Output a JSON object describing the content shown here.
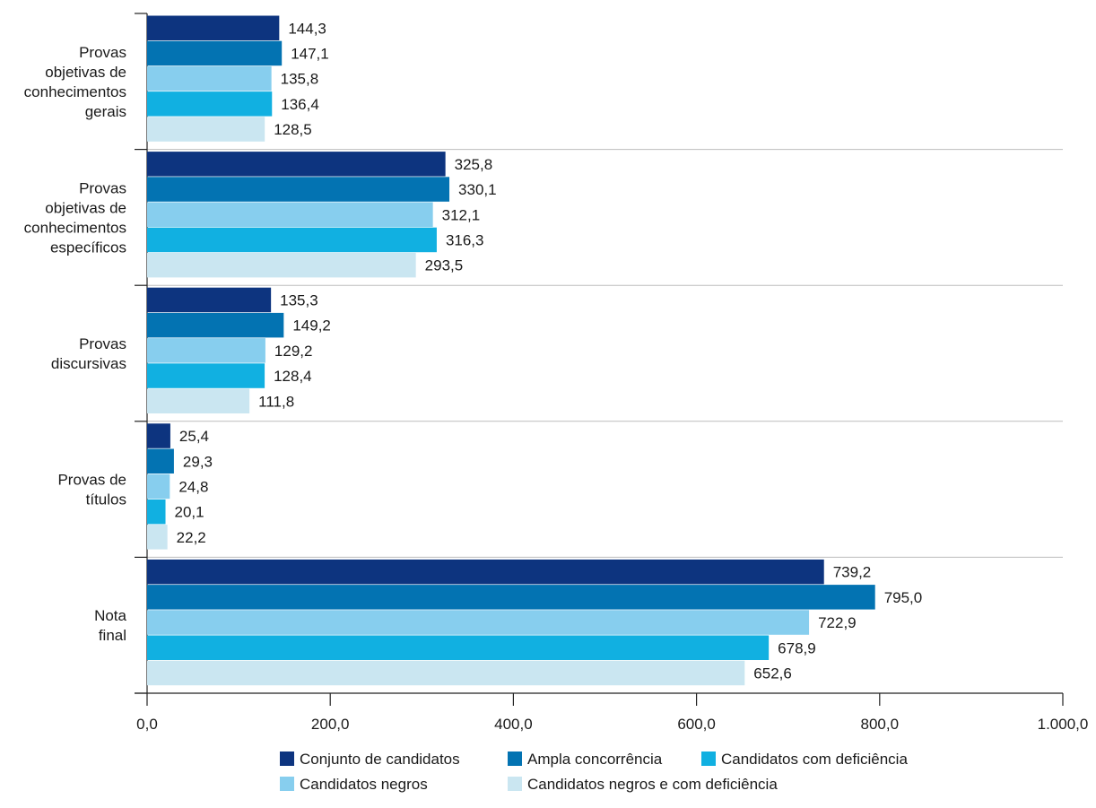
{
  "chart_data": {
    "type": "bar",
    "orientation": "horizontal",
    "categories": [
      "Provas objetivas de conhecimentos gerais",
      "Provas objetivas de conhecimentos específicos",
      "Provas discursivas",
      "Provas de títulos",
      "Nota final"
    ],
    "category_lines": [
      [
        "Provas",
        "objetivas de",
        "conhecimentos",
        "gerais"
      ],
      [
        "Provas",
        "objetivas de",
        "conhecimentos",
        "específicos"
      ],
      [
        "Provas",
        "discursivas"
      ],
      [
        "Provas de",
        "títulos"
      ],
      [
        "Nota",
        "final"
      ]
    ],
    "series": [
      {
        "name": "Conjunto de candidatos",
        "color": "#0d347f",
        "values": [
          144.3,
          325.8,
          135.3,
          25.4,
          739.2
        ],
        "labels": [
          "144,3",
          "325,8",
          "135,3",
          "25,4",
          "739,2"
        ]
      },
      {
        "name": "Ampla concorrência",
        "color": "#0373b2",
        "values": [
          147.1,
          330.1,
          149.2,
          29.3,
          795.0
        ],
        "labels": [
          "147,1",
          "330,1",
          "149,2",
          "29,3",
          "795,0"
        ]
      },
      {
        "name": "Candidatos negros",
        "color": "#87ceee",
        "values": [
          135.8,
          312.1,
          129.2,
          24.8,
          722.9
        ],
        "labels": [
          "135,8",
          "312,1",
          "129,2",
          "24,8",
          "722,9"
        ]
      },
      {
        "name": "Candidatos com deficiência",
        "color": "#11b0e1",
        "values": [
          136.4,
          316.3,
          128.4,
          20.1,
          678.9
        ],
        "labels": [
          "136,4",
          "316,3",
          "128,4",
          "20,1",
          "678,9"
        ]
      },
      {
        "name": "Candidatos negros e com deficiência",
        "color": "#cae6f1",
        "values": [
          128.5,
          293.5,
          111.8,
          22.2,
          652.6
        ],
        "labels": [
          "128,5",
          "293,5",
          "111,8",
          "22,2",
          "652,6"
        ]
      }
    ],
    "xlim": [
      0,
      1000
    ],
    "xticks": [
      0,
      200,
      400,
      600,
      800,
      1000
    ],
    "xtick_labels": [
      "0,0",
      "200,0",
      "400,0",
      "600,0",
      "800,0",
      "1.000,0"
    ],
    "grid": "horizontal separators between categories",
    "legend_position": "bottom",
    "legend_order": [
      0,
      1,
      3,
      2,
      4
    ],
    "title": "",
    "xlabel": "",
    "ylabel": ""
  }
}
